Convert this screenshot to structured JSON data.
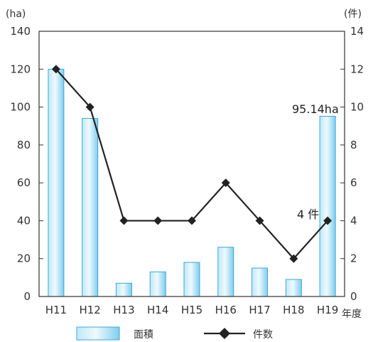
{
  "chart_data": {
    "type": "bar",
    "categories": [
      "H11",
      "H12",
      "H13",
      "H14",
      "H15",
      "H16",
      "H17",
      "H18",
      "H19"
    ],
    "x_unit": "年度",
    "left_axis": {
      "unit": "(ha)",
      "ylim": [
        0,
        140
      ],
      "ticks": [
        "0",
        "20",
        "40",
        "60",
        "80",
        "100",
        "120",
        "140"
      ]
    },
    "right_axis": {
      "unit": "(件)",
      "ylim": [
        0,
        14
      ],
      "ticks": [
        "0",
        "2",
        "4",
        "6",
        "8",
        "10",
        "12",
        "14"
      ]
    },
    "series": [
      {
        "name": "面積",
        "kind": "bar",
        "axis": "left",
        "values": [
          120,
          94,
          7,
          13,
          18,
          26,
          15,
          9,
          95.14
        ]
      },
      {
        "name": "件数",
        "kind": "line",
        "axis": "right",
        "values": [
          12,
          10,
          4,
          4,
          4,
          6,
          4,
          2,
          4
        ]
      }
    ],
    "annotations": [
      {
        "text": "95.14ha",
        "series": "面積",
        "category": "H19"
      },
      {
        "text": "4 件",
        "series": "件数",
        "category": "H19"
      }
    ],
    "colors": {
      "bar_edge": "#3aa8d8",
      "bar_light": "#e6f6fc",
      "bar_mid": "#8ed4f0",
      "line": "#222222"
    },
    "grid": false,
    "legend_position": "bottom"
  }
}
